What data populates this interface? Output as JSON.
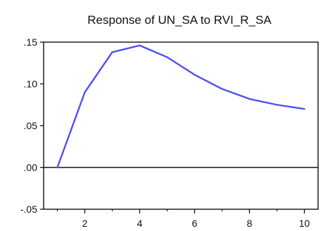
{
  "chart_data": {
    "type": "line",
    "title": "Response of UN_SA to RVI_R_SA",
    "xlabel": "",
    "ylabel": "",
    "x": [
      1,
      2,
      3,
      4,
      5,
      6,
      7,
      8,
      9,
      10
    ],
    "series": [
      {
        "values": [
          0.0,
          0.09,
          0.138,
          0.146,
          0.132,
          0.111,
          0.094,
          0.082,
          0.075,
          0.07
        ],
        "color": "#4f4ff0"
      }
    ],
    "xlim": [
      0.5,
      10.5
    ],
    "ylim": [
      -0.05,
      0.15
    ],
    "x_ticks": [
      2,
      4,
      6,
      8,
      10
    ],
    "x_minor_ticks": [
      1,
      3,
      5,
      7,
      9
    ],
    "x_tick_labels": [
      "2",
      "4",
      "6",
      "8",
      "10"
    ],
    "y_ticks": [
      -0.05,
      0.0,
      0.05,
      0.1,
      0.15
    ],
    "y_tick_labels": [
      "-.05",
      ".00",
      ".05",
      ".10",
      ".15"
    ],
    "zero_line": true,
    "grid": false,
    "legend": "none"
  }
}
